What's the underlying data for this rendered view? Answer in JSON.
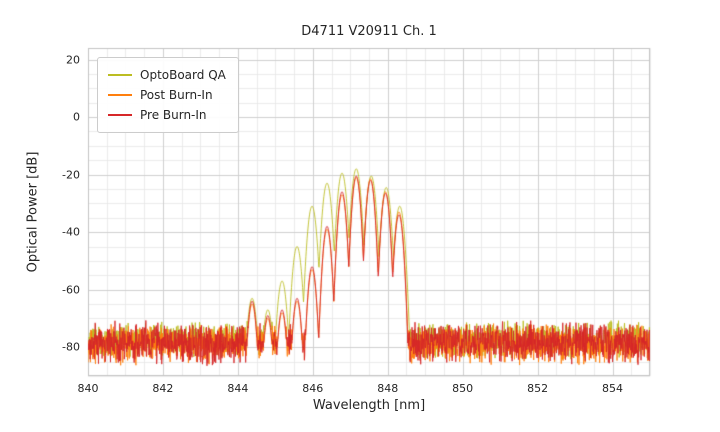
{
  "chart_data": {
    "type": "line",
    "title": "D4711 V20911 Ch. 1",
    "xlabel": "Wavelength [nm]",
    "ylabel": "Optical Power [dB]",
    "xlim": [
      840,
      855
    ],
    "ylim": [
      -90,
      24
    ],
    "xticks": [
      840,
      842,
      844,
      846,
      848,
      850,
      852,
      854
    ],
    "yticks": [
      20,
      0,
      -20,
      -40,
      -60,
      -80
    ],
    "x_minor_step": 0.5,
    "y_minor_step": 5,
    "grid": true,
    "grid_major_color": "#cfcfcf",
    "grid_minor_color": "#e7e7e7",
    "frame_color": "#c4c4c4",
    "legend_position": "upper left",
    "sample_step_nm": 0.008,
    "series": [
      {
        "name": "OptoBoard QA",
        "color": "#bcbd22",
        "noise_floor": {
          "mean_db": -77.5,
          "spread_db": 7,
          "seed": 101
        },
        "mode_half_width_nm": 0.2,
        "mode_rolloff_db": 26,
        "mode_peaks": [
          [
            844.38,
            -63.0
          ],
          [
            844.8,
            -67.0
          ],
          [
            845.18,
            -57.0
          ],
          [
            845.58,
            -45.0
          ],
          [
            845.98,
            -31.0
          ],
          [
            846.38,
            -23.0
          ],
          [
            846.78,
            -19.5
          ],
          [
            847.16,
            -18.0
          ],
          [
            847.56,
            -20.5
          ],
          [
            847.96,
            -24.5
          ],
          [
            848.32,
            -31.0
          ]
        ]
      },
      {
        "name": "Post Burn-In",
        "color": "#ff7f0e",
        "noise_floor": {
          "mean_db": -79.0,
          "spread_db": 7.5,
          "seed": 202
        },
        "mode_half_width_nm": 0.2,
        "mode_rolloff_db": 31,
        "mode_peaks": [
          [
            844.38,
            -65.0
          ],
          [
            844.8,
            -70.0
          ],
          [
            845.18,
            -68.0
          ],
          [
            845.58,
            -64.0
          ],
          [
            845.98,
            -53.0
          ],
          [
            846.38,
            -39.0
          ],
          [
            846.78,
            -27.0
          ],
          [
            847.16,
            -21.0
          ],
          [
            847.54,
            -21.5
          ],
          [
            847.94,
            -26.0
          ],
          [
            848.3,
            -33.0
          ]
        ]
      },
      {
        "name": "Pre Burn-In",
        "color": "#d62728",
        "noise_floor": {
          "mean_db": -78.5,
          "spread_db": 8,
          "seed": 303
        },
        "mode_half_width_nm": 0.2,
        "mode_rolloff_db": 32,
        "mode_peaks": [
          [
            844.38,
            -64.0
          ],
          [
            844.8,
            -69.0
          ],
          [
            845.18,
            -67.0
          ],
          [
            845.58,
            -63.0
          ],
          [
            845.98,
            -52.0
          ],
          [
            846.38,
            -38.0
          ],
          [
            846.78,
            -26.0
          ],
          [
            847.16,
            -20.5
          ],
          [
            847.54,
            -22.0
          ],
          [
            847.94,
            -26.5
          ],
          [
            848.3,
            -34.0
          ]
        ]
      }
    ]
  }
}
